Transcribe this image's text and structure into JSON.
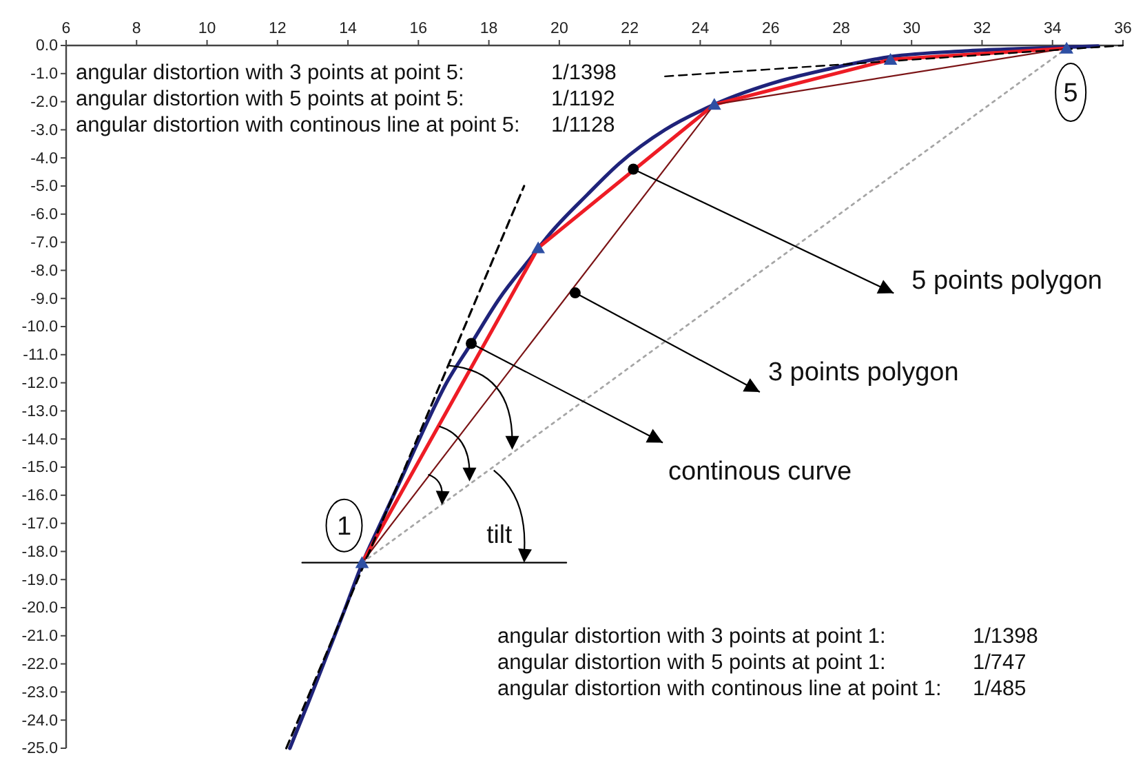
{
  "chart_data": {
    "type": "line",
    "xlim": [
      6,
      36
    ],
    "xticks": [
      6,
      8,
      10,
      12,
      14,
      16,
      18,
      20,
      22,
      24,
      26,
      28,
      30,
      32,
      34,
      36
    ],
    "ylim": [
      -25,
      0
    ],
    "yticks": [
      {
        "value": 0,
        "label": "0.0"
      },
      {
        "value": -1,
        "label": "-1.0"
      },
      {
        "value": -2,
        "label": "-2.0"
      },
      {
        "value": -3,
        "label": "-3.0"
      },
      {
        "value": -4,
        "label": "-4.0"
      },
      {
        "value": -5,
        "label": "-5.0"
      },
      {
        "value": -6,
        "label": "-6.0"
      },
      {
        "value": -7,
        "label": "-7.0"
      },
      {
        "value": -8,
        "label": "-8.0"
      },
      {
        "value": -9,
        "label": "-9.0"
      },
      {
        "value": -10,
        "label": "-10.0"
      },
      {
        "value": -11,
        "label": "-11.0"
      },
      {
        "value": -12,
        "label": "-12.0"
      },
      {
        "value": -13,
        "label": "-13.0"
      },
      {
        "value": -14,
        "label": "-14.0"
      },
      {
        "value": -15,
        "label": "-15.0"
      },
      {
        "value": -16,
        "label": "-16.0"
      },
      {
        "value": -17,
        "label": "-17.0"
      },
      {
        "value": -18,
        "label": "-18.0"
      },
      {
        "value": -19,
        "label": "-19.0"
      },
      {
        "value": -20,
        "label": "-20.0"
      },
      {
        "value": -21,
        "label": "-21.0"
      },
      {
        "value": -22,
        "label": "-22.0"
      },
      {
        "value": -23,
        "label": "-23.0"
      },
      {
        "value": -24,
        "label": "-24.0"
      },
      {
        "value": -25,
        "label": "-25.0"
      }
    ],
    "series": [
      {
        "color": "#1f237a",
        "x": [
          12.35,
          12.9,
          13.4,
          13.9,
          14.4,
          15.0,
          15.5,
          16.1,
          16.8,
          17.5,
          18.3,
          19.1,
          19.8,
          20.8,
          21.7,
          23.0,
          24.4,
          26.3,
          27.6,
          29.4,
          31.5,
          33.0,
          34.4,
          35.3
        ],
        "values": [
          -25.0,
          -23.3,
          -21.7,
          -20.1,
          -18.45,
          -16.8,
          -15.45,
          -13.8,
          -12.0,
          -10.6,
          -9.0,
          -7.7,
          -6.6,
          -5.3,
          -4.2,
          -3.0,
          -2.1,
          -1.25,
          -0.85,
          -0.4,
          -0.2,
          -0.12,
          -0.06,
          -0.02
        ]
      },
      {
        "color": "#ee1c25",
        "x": [
          14.4,
          19.4,
          24.4,
          29.4,
          34.4
        ],
        "values": [
          -18.4,
          -7.2,
          -2.1,
          -0.5,
          -0.1
        ]
      },
      {
        "color": "#7b1416",
        "x": [
          14.4,
          24.4,
          34.4
        ],
        "values": [
          -18.4,
          -2.1,
          -0.1
        ]
      },
      {
        "color": "#000000",
        "line_style": "dashed",
        "x": [
          12.25,
          19.0
        ],
        "values": [
          -25.0,
          -5.0
        ]
      },
      {
        "color": "#000000",
        "line_style": "dashed",
        "x": [
          23.0,
          36.0
        ],
        "values": [
          -1.1,
          0.0
        ]
      },
      {
        "color": "#a6a6a6",
        "line_style": "dotted",
        "x": [
          14.4,
          34.4
        ],
        "values": [
          -18.4,
          -0.1
        ]
      },
      {
        "color": "#000000",
        "x": [
          12.7,
          20.2
        ],
        "values": [
          -18.4,
          -18.4
        ]
      },
      {
        "type": "scatter",
        "color": "#2e4fa3",
        "marker": "triangle",
        "x": [
          14.4,
          19.4,
          24.4,
          29.4,
          34.4
        ],
        "values": [
          -18.4,
          -7.2,
          -2.1,
          -0.5,
          -0.1
        ]
      }
    ],
    "annotations": [
      "angular distortion with 3 points at point 5: 1/1398",
      "angular distortion with 5 points at point 5: 1/1192",
      "angular distortion with continous line at point 5: 1/1128",
      {
        "text": "5 points polygon",
        "x": 22.1,
        "y": -4.4
      },
      {
        "text": "3 points polygon",
        "x": 20.45,
        "y": -8.8
      },
      {
        "text": "continous curve",
        "x": 17.5,
        "y": -10.6
      },
      {
        "text": "1",
        "x": 14.4,
        "y": -18.4
      },
      {
        "text": "5",
        "x": 34.4,
        "y": -0.1
      },
      {
        "text": "tilt",
        "x": 19.0,
        "y": -18.4
      },
      "angular distortion with 3 points at point 1: 1/1398",
      "angular distortion with 5 points at point 1: 1/747",
      "angular distortion with continous line at point 1: 1/485"
    ]
  }
}
